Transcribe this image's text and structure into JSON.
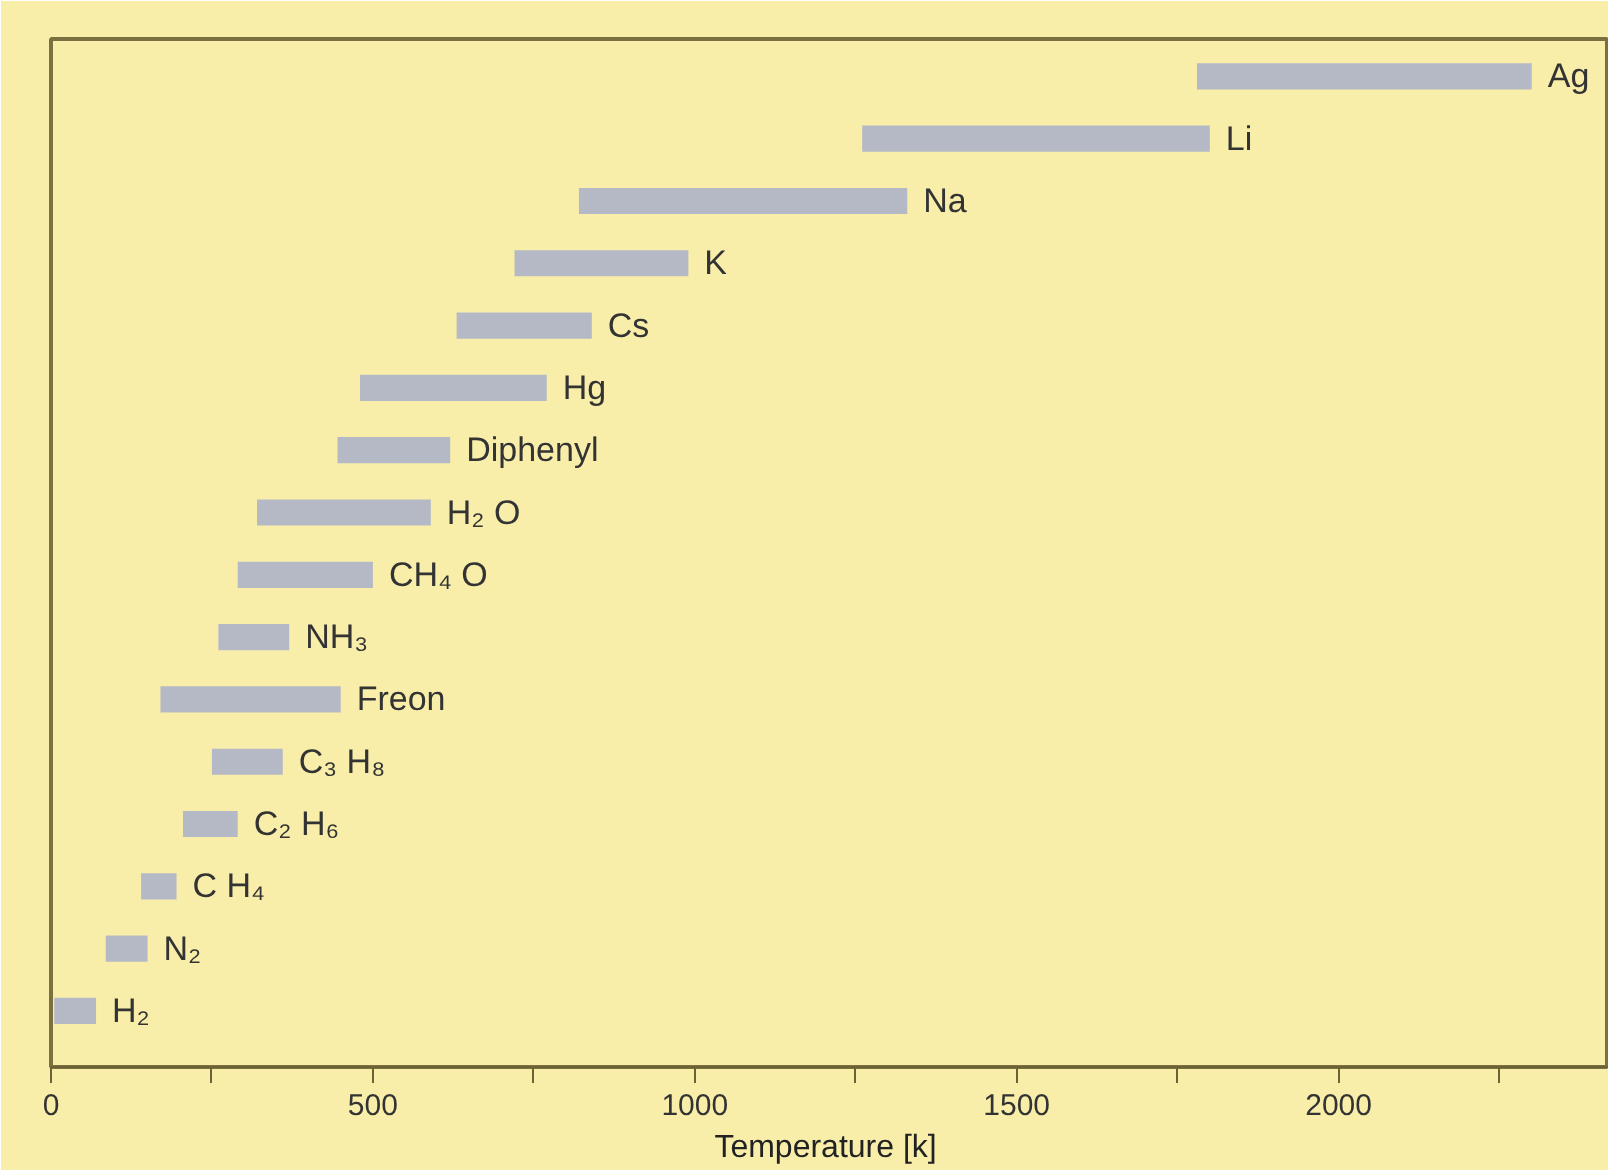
{
  "chart_data": {
    "type": "bar",
    "orientation": "horizontal",
    "xlabel": "Temperature  [k]",
    "categories": [
      "Ag",
      "Li",
      "Na",
      "K",
      "Cs",
      "Hg",
      "Diphenyl",
      "H₂ O",
      "CH₄ O",
      "NH₃",
      "Freon",
      "C₃ H₈",
      "C₂ H₆",
      "C H₄",
      "N₂",
      "H₂"
    ],
    "base": [
      1780,
      1260,
      820,
      720,
      630,
      480,
      445,
      320,
      290,
      260,
      170,
      250,
      205,
      140,
      85,
      5
    ],
    "values": [
      520,
      540,
      510,
      270,
      210,
      290,
      175,
      270,
      210,
      110,
      280,
      110,
      85,
      55,
      65,
      65
    ],
    "color": "#b5b9c6",
    "xlim": [
      0,
      2420
    ],
    "xticks": [
      0,
      {
        "value": 250,
        "label": null
      },
      500,
      {
        "value": 750,
        "label": null
      },
      1000,
      {
        "value": 1250,
        "label": null
      },
      1500,
      {
        "value": 1750,
        "label": null
      },
      2000,
      {
        "value": 2250,
        "label": null
      }
    ],
    "tick_labels": "x",
    "grid": false
  }
}
